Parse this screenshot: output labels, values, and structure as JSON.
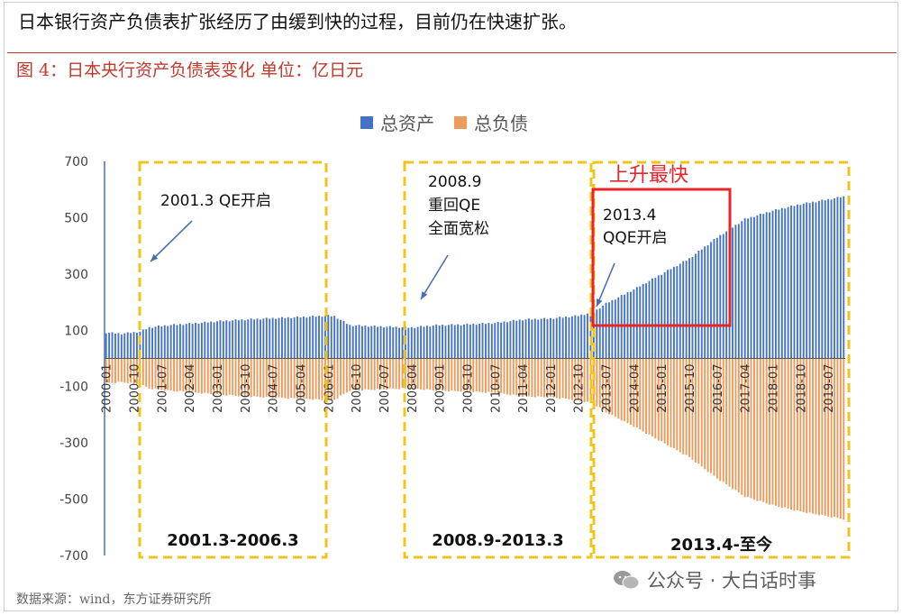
{
  "headline": "日本银行资产负债表扩张经历了由缓到快的过程，目前仍在快速扩张。",
  "figure_title": "图 4：日本央行资产负债表变化 单位：亿日元",
  "source": "数据来源：wind，东方证券研究所",
  "watermark": "公众号 · 大白话时事",
  "colors": {
    "assets": "#4472c4",
    "liabilities": "#ed9a5b",
    "highlight_box": "#e8232a",
    "period_box": "#f0c419",
    "title_red": "#c0392b"
  },
  "chart_data": {
    "type": "bar",
    "legend": [
      "总资产",
      "总负债"
    ],
    "legend_placement": "top-center",
    "ylim": [
      -700,
      700
    ],
    "yticks": [
      700,
      500,
      300,
      100,
      -100,
      -300,
      -500,
      -700
    ],
    "xticks": [
      "2000-01",
      "2000-10",
      "2001-07",
      "2002-04",
      "2003-01",
      "2003-10",
      "2004-07",
      "2005-04",
      "2006-01",
      "2006-10",
      "2007-07",
      "2008-04",
      "2009-01",
      "2009-10",
      "2010-07",
      "2011-04",
      "2012-01",
      "2012-10",
      "2013-07",
      "2014-04",
      "2015-01",
      "2015-10",
      "2016-07",
      "2017-04",
      "2018-01",
      "2018-10",
      "2019-07"
    ],
    "x_start": "2000-01",
    "x_end": "2019-12",
    "series_points": {
      "assets": [
        [
          "2000-01",
          92
        ],
        [
          "2000-06",
          88
        ],
        [
          "2000-12",
          95
        ],
        [
          "2001-03",
          110
        ],
        [
          "2001-09",
          118
        ],
        [
          "2002-06",
          125
        ],
        [
          "2003-01",
          132
        ],
        [
          "2003-10",
          138
        ],
        [
          "2004-07",
          143
        ],
        [
          "2005-04",
          147
        ],
        [
          "2006-01",
          152
        ],
        [
          "2006-03",
          150
        ],
        [
          "2006-08",
          118
        ],
        [
          "2007-07",
          113
        ],
        [
          "2008-04",
          110
        ],
        [
          "2008-12",
          118
        ],
        [
          "2009-10",
          121
        ],
        [
          "2010-07",
          126
        ],
        [
          "2011-04",
          138
        ],
        [
          "2012-01",
          142
        ],
        [
          "2012-10",
          152
        ],
        [
          "2013-03",
          165
        ],
        [
          "2013-07",
          195
        ],
        [
          "2014-04",
          245
        ],
        [
          "2015-01",
          300
        ],
        [
          "2015-10",
          355
        ],
        [
          "2016-07",
          430
        ],
        [
          "2017-04",
          495
        ],
        [
          "2018-01",
          525
        ],
        [
          "2018-10",
          548
        ],
        [
          "2019-07",
          565
        ],
        [
          "2019-12",
          575
        ]
      ],
      "liabilities": [
        [
          "2000-01",
          -88
        ],
        [
          "2000-06",
          -84
        ],
        [
          "2000-12",
          -92
        ],
        [
          "2001-03",
          -106
        ],
        [
          "2001-09",
          -114
        ],
        [
          "2002-06",
          -121
        ],
        [
          "2003-01",
          -128
        ],
        [
          "2003-10",
          -134
        ],
        [
          "2004-07",
          -139
        ],
        [
          "2005-04",
          -143
        ],
        [
          "2006-01",
          -148
        ],
        [
          "2006-03",
          -146
        ],
        [
          "2006-08",
          -114
        ],
        [
          "2007-07",
          -109
        ],
        [
          "2008-04",
          -106
        ],
        [
          "2008-12",
          -114
        ],
        [
          "2009-10",
          -117
        ],
        [
          "2010-07",
          -122
        ],
        [
          "2011-04",
          -134
        ],
        [
          "2012-01",
          -138
        ],
        [
          "2012-10",
          -148
        ],
        [
          "2013-03",
          -161
        ],
        [
          "2013-07",
          -191
        ],
        [
          "2014-04",
          -241
        ],
        [
          "2015-01",
          -296
        ],
        [
          "2015-10",
          -351
        ],
        [
          "2016-07",
          -426
        ],
        [
          "2017-04",
          -491
        ],
        [
          "2018-01",
          -521
        ],
        [
          "2018-10",
          -544
        ],
        [
          "2019-07",
          -561
        ],
        [
          "2019-12",
          -571
        ]
      ]
    },
    "period_boxes": [
      {
        "from": "2001-03",
        "to": "2006-03",
        "label": "2001.3-2006.3"
      },
      {
        "from": "2008-09",
        "to": "2013-03",
        "label": "2008.9-2013.3"
      },
      {
        "from": "2013-04",
        "to": "2019-12",
        "label": "2013.4-至今"
      }
    ],
    "annotations": [
      {
        "text": [
          "2001.3 QE开启"
        ]
      },
      {
        "text": [
          "2008.9",
          "重回QE",
          "全面宽松"
        ]
      },
      {
        "text": [
          "2013.4",
          "QQE开启"
        ]
      }
    ],
    "highlight": {
      "label": "上升最快",
      "from": "2013-04",
      "to": "2016-10"
    }
  }
}
